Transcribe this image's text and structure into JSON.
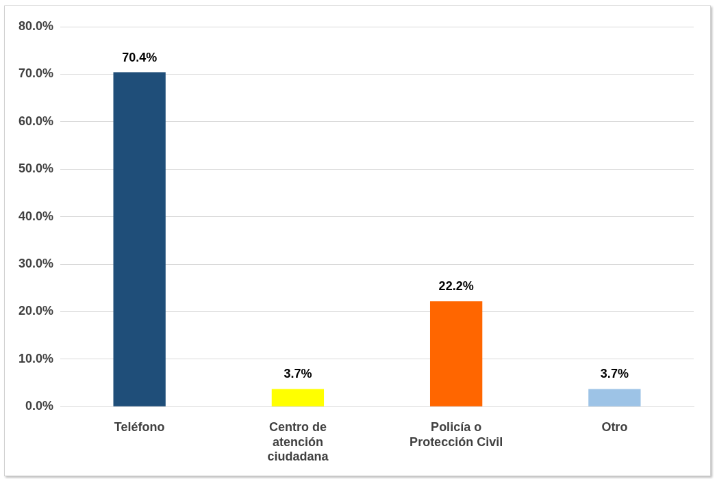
{
  "chart_data": {
    "type": "bar",
    "categories": [
      "Teléfono",
      "Centro de atención ciudadana",
      "Policía o Protección Civil",
      "Otro"
    ],
    "values": [
      70.4,
      3.7,
      22.2,
      3.7
    ],
    "colors": [
      "#1f4e79",
      "#ffff00",
      "#ff6600",
      "#9dc3e6"
    ],
    "value_labels": [
      "70.4%",
      "3.7%",
      "22.2%",
      "3.7%"
    ],
    "ylim": [
      0,
      80
    ],
    "yticks": [
      {
        "value": 0,
        "label": "0.0%"
      },
      {
        "value": 10,
        "label": "10.0%"
      },
      {
        "value": 20,
        "label": "20.0%"
      },
      {
        "value": 30,
        "label": "30.0%"
      },
      {
        "value": 40,
        "label": "40.0%"
      },
      {
        "value": 50,
        "label": "50.0%"
      },
      {
        "value": 60,
        "label": "60.0%"
      },
      {
        "value": 70,
        "label": "70.0%"
      },
      {
        "value": 80,
        "label": "80.0%"
      }
    ],
    "grid": "y",
    "legend": false
  }
}
